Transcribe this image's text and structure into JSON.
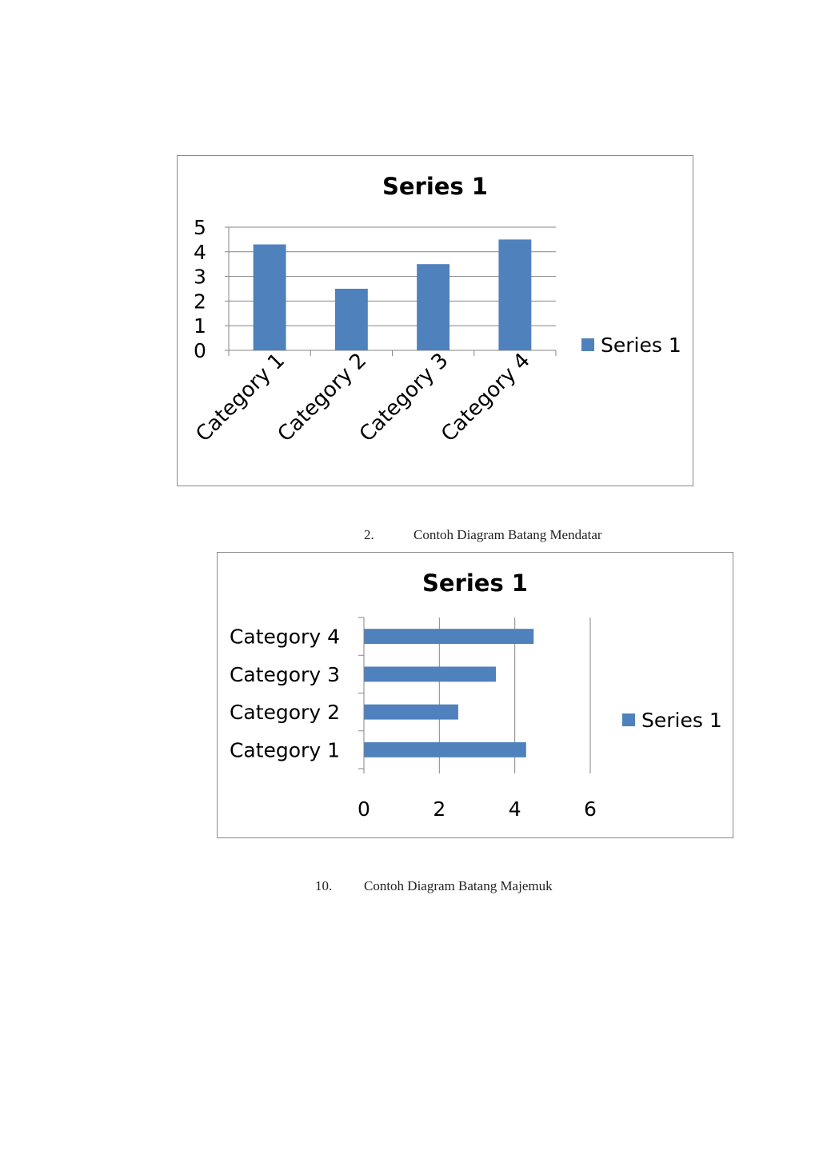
{
  "colors": {
    "bar": "#4f81bd",
    "grid": "#868686",
    "frame": "#8a8a8a"
  },
  "chart_data": [
    {
      "type": "bar",
      "orientation": "vertical",
      "title": "Series 1",
      "categories": [
        "Category 1",
        "Category 2",
        "Category 3",
        "Category 4"
      ],
      "series": [
        {
          "name": "Series 1",
          "values": [
            4.3,
            2.5,
            3.5,
            4.5
          ]
        }
      ],
      "y_ticks": [
        "0",
        "1",
        "2",
        "3",
        "4",
        "5"
      ],
      "ylim": [
        0,
        5
      ],
      "grid": true,
      "legend": "right"
    },
    {
      "type": "bar",
      "orientation": "horizontal",
      "title": "Series 1",
      "categories": [
        "Category 1",
        "Category 2",
        "Category 3",
        "Category 4"
      ],
      "series": [
        {
          "name": "Series 1",
          "values": [
            4.3,
            2.5,
            3.5,
            4.5
          ]
        }
      ],
      "x_ticks": [
        "0",
        "2",
        "4",
        "6"
      ],
      "xlim": [
        0,
        6
      ],
      "grid": true,
      "legend": "right"
    }
  ],
  "captions": [
    {
      "number": "2.",
      "text": "Contoh Diagram Batang Mendatar"
    },
    {
      "number": "10.",
      "text": "Contoh Diagram Batang Majemuk"
    }
  ]
}
